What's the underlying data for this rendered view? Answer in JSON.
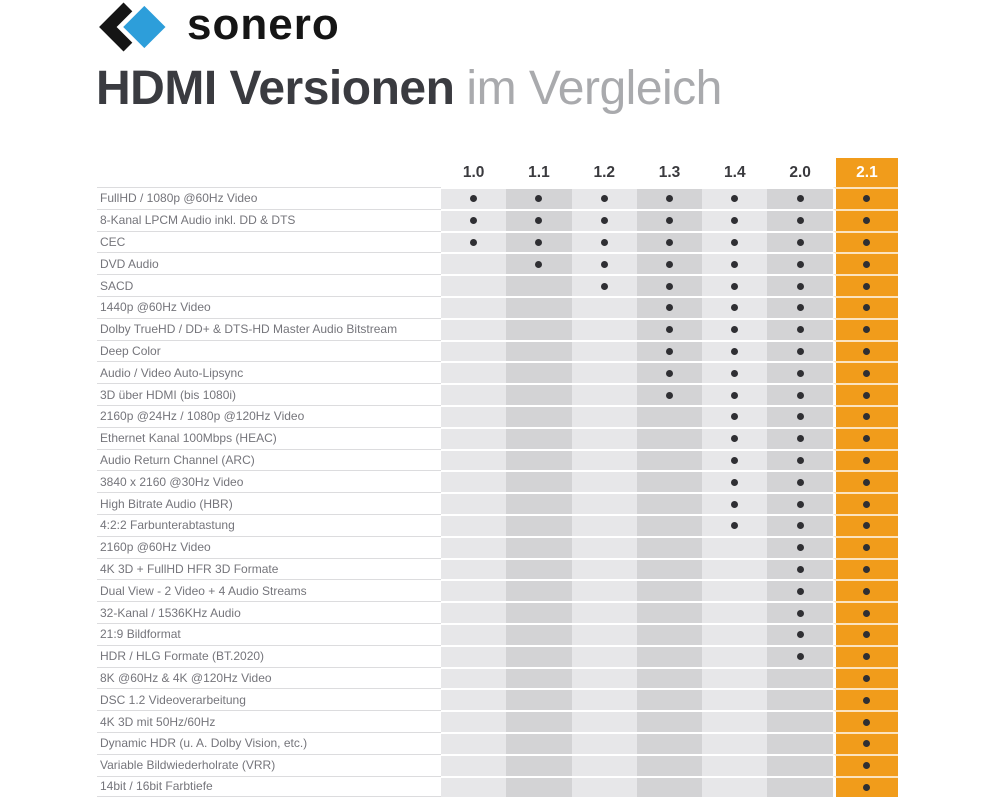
{
  "brand": {
    "name": "sonero",
    "logo_colors": {
      "black": "#151515",
      "blue": "#2D9EDA"
    }
  },
  "title": {
    "main": "HDMI Versionen",
    "sub": "im Vergleich"
  },
  "colors": {
    "highlight_orange": "#F19C1B",
    "column_light": "#E7E7E9",
    "column_dark": "#D3D3D5",
    "dot": "#2F2F33",
    "header_text": "#3A3A3E",
    "label_text": "#75757B",
    "row_line": "#DCDCDE",
    "title_dark": "#3A3B40",
    "title_gray": "#A9AAAD"
  },
  "chart_data": {
    "type": "table",
    "title": "HDMI Versionen im Vergleich",
    "columns": [
      "1.0",
      "1.1",
      "1.2",
      "1.3",
      "1.4",
      "2.0",
      "2.1"
    ],
    "highlight_column": "2.1",
    "marker": "dot = unterstützt",
    "rows": [
      {
        "label": "FullHD / 1080p @60Hz Video",
        "supported": [
          1,
          1,
          1,
          1,
          1,
          1,
          1
        ]
      },
      {
        "label": "8-Kanal LPCM Audio inkl. DD & DTS",
        "supported": [
          1,
          1,
          1,
          1,
          1,
          1,
          1
        ]
      },
      {
        "label": "CEC",
        "supported": [
          1,
          1,
          1,
          1,
          1,
          1,
          1
        ]
      },
      {
        "label": "DVD Audio",
        "supported": [
          0,
          1,
          1,
          1,
          1,
          1,
          1
        ]
      },
      {
        "label": "SACD",
        "supported": [
          0,
          0,
          1,
          1,
          1,
          1,
          1
        ]
      },
      {
        "label": "1440p @60Hz Video",
        "supported": [
          0,
          0,
          0,
          1,
          1,
          1,
          1
        ]
      },
      {
        "label": "Dolby TrueHD / DD+ & DTS-HD Master Audio Bitstream",
        "supported": [
          0,
          0,
          0,
          1,
          1,
          1,
          1
        ]
      },
      {
        "label": "Deep Color",
        "supported": [
          0,
          0,
          0,
          1,
          1,
          1,
          1
        ]
      },
      {
        "label": "Audio / Video Auto-Lipsync",
        "supported": [
          0,
          0,
          0,
          1,
          1,
          1,
          1
        ]
      },
      {
        "label": "3D über HDMI (bis 1080i)",
        "supported": [
          0,
          0,
          0,
          1,
          1,
          1,
          1
        ]
      },
      {
        "label": "2160p @24Hz / 1080p @120Hz Video",
        "supported": [
          0,
          0,
          0,
          0,
          1,
          1,
          1
        ]
      },
      {
        "label": "Ethernet Kanal 100Mbps (HEAC)",
        "supported": [
          0,
          0,
          0,
          0,
          1,
          1,
          1
        ]
      },
      {
        "label": "Audio Return Channel (ARC)",
        "supported": [
          0,
          0,
          0,
          0,
          1,
          1,
          1
        ]
      },
      {
        "label": "3840 x 2160 @30Hz Video",
        "supported": [
          0,
          0,
          0,
          0,
          1,
          1,
          1
        ]
      },
      {
        "label": "High Bitrate Audio (HBR)",
        "supported": [
          0,
          0,
          0,
          0,
          1,
          1,
          1
        ]
      },
      {
        "label": "4:2:2 Farbunterabtastung",
        "supported": [
          0,
          0,
          0,
          0,
          1,
          1,
          1
        ]
      },
      {
        "label": "2160p @60Hz Video",
        "supported": [
          0,
          0,
          0,
          0,
          0,
          1,
          1
        ]
      },
      {
        "label": "4K 3D + FullHD HFR 3D Formate",
        "supported": [
          0,
          0,
          0,
          0,
          0,
          1,
          1
        ]
      },
      {
        "label": "Dual View - 2 Video + 4 Audio Streams",
        "supported": [
          0,
          0,
          0,
          0,
          0,
          1,
          1
        ]
      },
      {
        "label": "32-Kanal / 1536KHz Audio",
        "supported": [
          0,
          0,
          0,
          0,
          0,
          1,
          1
        ]
      },
      {
        "label": "21:9 Bildformat",
        "supported": [
          0,
          0,
          0,
          0,
          0,
          1,
          1
        ]
      },
      {
        "label": "HDR / HLG Formate (BT.2020)",
        "supported": [
          0,
          0,
          0,
          0,
          0,
          1,
          1
        ]
      },
      {
        "label": "8K @60Hz & 4K @120Hz Video",
        "supported": [
          0,
          0,
          0,
          0,
          0,
          0,
          1
        ]
      },
      {
        "label": "DSC 1.2 Videoverarbeitung",
        "supported": [
          0,
          0,
          0,
          0,
          0,
          0,
          1
        ]
      },
      {
        "label": "4K 3D mit 50Hz/60Hz",
        "supported": [
          0,
          0,
          0,
          0,
          0,
          0,
          1
        ]
      },
      {
        "label": "Dynamic HDR (u. A. Dolby Vision, etc.)",
        "supported": [
          0,
          0,
          0,
          0,
          0,
          0,
          1
        ]
      },
      {
        "label": "Variable Bildwiederholrate (VRR)",
        "supported": [
          0,
          0,
          0,
          0,
          0,
          0,
          1
        ]
      },
      {
        "label": "14bit / 16bit Farbtiefe",
        "supported": [
          0,
          0,
          0,
          0,
          0,
          0,
          1
        ]
      }
    ]
  }
}
